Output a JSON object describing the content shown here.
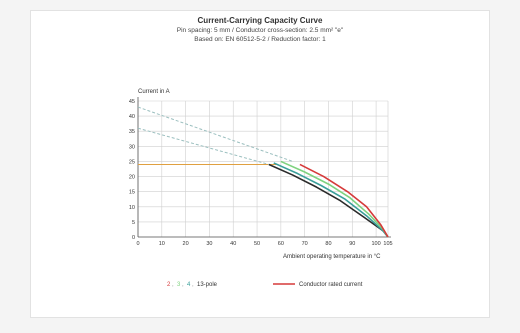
{
  "chart_data": {
    "type": "line",
    "title": "Current-Carrying Capacity Curve",
    "subtitle_1": "Pin spacing: 5 mm / Conductor cross-section: 2.5 mm² \"e\"",
    "subtitle_2": "Based on: EN 60512-5-2 / Reduction factor: 1",
    "ylabel": "Current in A",
    "xlabel": "Ambient operating temperature in °C",
    "xlim": [
      0,
      105
    ],
    "ylim": [
      0,
      45
    ],
    "xticks": [
      0,
      10,
      20,
      30,
      40,
      50,
      60,
      70,
      80,
      90,
      100,
      105
    ],
    "yticks": [
      0,
      5,
      10,
      15,
      20,
      25,
      30,
      35,
      40,
      45
    ],
    "series": [
      {
        "name": "2-pole",
        "color": "#2a2a2a",
        "dashed_x": [
          0,
          55
        ],
        "dashed_y": [
          36,
          24
        ],
        "x": [
          55,
          65,
          75,
          85,
          95,
          103,
          105
        ],
        "y": [
          24,
          20.5,
          16.5,
          12,
          6.5,
          2,
          0
        ]
      },
      {
        "name": "",
        "color": "#3a9f9a",
        "x": [
          57,
          67,
          77,
          87,
          96,
          103,
          105
        ],
        "y": [
          24.5,
          21,
          17,
          12.5,
          7,
          2,
          0
        ]
      },
      {
        "name": "13-pole",
        "color": "#7fd27f",
        "x": [
          60,
          70,
          80,
          89,
          97,
          103,
          105
        ],
        "y": [
          25,
          21.5,
          17.5,
          13,
          7.5,
          2.5,
          0
        ]
      },
      {
        "name": "Conductor rated current",
        "color": "#d63a3a",
        "dashed_x": [
          0,
          65
        ],
        "dashed_y": [
          43,
          25
        ],
        "x": [
          68,
          78,
          88,
          96,
          102,
          105
        ],
        "y": [
          24,
          20,
          15,
          10,
          4,
          0
        ]
      }
    ],
    "rated_current_line": {
      "color": "#e0a040",
      "y": 24,
      "x": [
        0,
        58
      ]
    },
    "legend": {
      "poles_prefix": [
        "2",
        "3",
        "4"
      ],
      "poles_suffix": "13-pole",
      "rated_label": "Conductor rated current"
    }
  }
}
